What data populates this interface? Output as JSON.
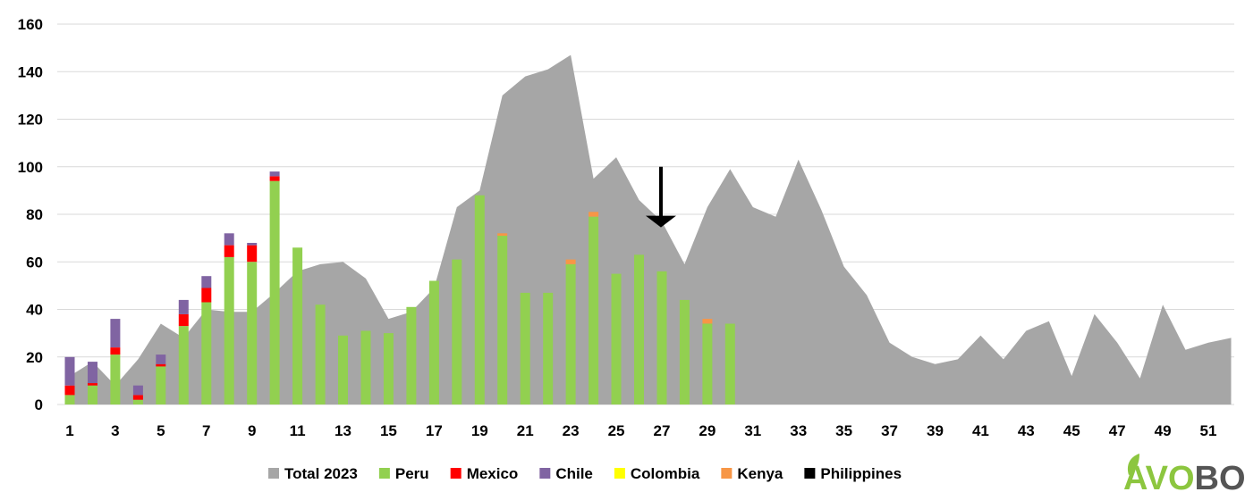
{
  "chart_data": {
    "type": "bar",
    "title": "",
    "xlabel": "",
    "ylabel": "",
    "ylim": [
      0,
      160
    ],
    "xlim": [
      1,
      52
    ],
    "y_ticks": [
      0,
      20,
      40,
      60,
      80,
      100,
      120,
      140,
      160
    ],
    "x_ticks": [
      1,
      3,
      5,
      7,
      9,
      11,
      13,
      15,
      17,
      19,
      21,
      23,
      25,
      27,
      29,
      31,
      33,
      35,
      37,
      39,
      41,
      43,
      45,
      47,
      49,
      51
    ],
    "grid": "horizontal",
    "legend_position": "bottom",
    "area_series": {
      "name": "Total 2023",
      "color": "#a6a6a6",
      "x": [
        1,
        2,
        3,
        4,
        5,
        6,
        7,
        8,
        9,
        10,
        11,
        12,
        13,
        14,
        15,
        16,
        17,
        18,
        19,
        20,
        21,
        22,
        23,
        24,
        25,
        26,
        27,
        28,
        29,
        30,
        31,
        32,
        33,
        34,
        35,
        36,
        37,
        38,
        39,
        40,
        41,
        42,
        43,
        44,
        45,
        46,
        47,
        48,
        49,
        50,
        51,
        52
      ],
      "values": [
        12,
        18,
        8,
        19,
        34,
        28,
        40,
        39,
        39,
        47,
        56,
        59,
        60,
        53,
        36,
        39,
        49,
        83,
        90,
        130,
        138,
        141,
        147,
        95,
        104,
        86,
        77,
        59,
        83,
        99,
        83,
        79,
        103,
        82,
        58,
        46,
        26,
        20,
        17,
        19,
        29,
        19,
        31,
        35,
        12,
        38,
        26,
        11,
        42,
        23,
        26,
        28
      ]
    },
    "bar_x": [
      1,
      2,
      3,
      4,
      5,
      6,
      7,
      8,
      9,
      10,
      11,
      12,
      13,
      14,
      15,
      16,
      17,
      18,
      19,
      20,
      21,
      22,
      23,
      24,
      25,
      26,
      27,
      28,
      29,
      30
    ],
    "series": [
      {
        "name": "Peru",
        "color": "#92d050",
        "values": [
          4,
          8,
          21,
          2,
          16,
          33,
          43,
          62,
          60,
          94,
          66,
          42,
          29,
          31,
          30,
          41,
          52,
          61,
          88,
          71,
          47,
          47,
          59,
          79,
          55,
          63,
          56,
          44,
          34,
          34
        ]
      },
      {
        "name": "Mexico",
        "color": "#ff0000",
        "values": [
          4,
          1,
          3,
          2,
          1,
          5,
          6,
          5,
          7,
          2,
          0,
          0,
          0,
          0,
          0,
          0,
          0,
          0,
          0,
          0,
          0,
          0,
          0,
          0,
          0,
          0,
          0,
          0,
          0,
          0
        ]
      },
      {
        "name": "Chile",
        "color": "#8064a2",
        "values": [
          12,
          9,
          12,
          4,
          4,
          6,
          5,
          5,
          1,
          2,
          0,
          0,
          0,
          0,
          0,
          0,
          0,
          0,
          0,
          0,
          0,
          0,
          0,
          0,
          0,
          0,
          0,
          0,
          0,
          0
        ]
      },
      {
        "name": "Colombia",
        "color": "#ffff00",
        "values": [
          0,
          0,
          0,
          0,
          0,
          0,
          0,
          0,
          0,
          0,
          0,
          0,
          0,
          0,
          0,
          0,
          0,
          0,
          0,
          0,
          0,
          0,
          0,
          0,
          0,
          0,
          0,
          0,
          0,
          0
        ]
      },
      {
        "name": "Kenya",
        "color": "#f79646",
        "values": [
          0,
          0,
          0,
          0,
          0,
          0,
          0,
          0,
          0,
          0,
          0,
          0,
          0,
          0,
          0,
          0,
          0,
          0,
          0,
          1,
          0,
          0,
          2,
          2,
          0,
          0,
          0,
          0,
          2,
          0
        ]
      },
      {
        "name": "Philippines",
        "color": "#000000",
        "values": [
          0,
          0,
          0,
          0,
          0,
          0,
          0,
          0,
          0,
          0,
          0,
          0,
          0,
          0,
          0,
          0,
          0,
          0,
          0,
          0,
          0,
          0,
          0,
          0,
          0,
          0,
          0,
          0,
          0,
          0
        ]
      }
    ],
    "annotation": {
      "type": "down-arrow",
      "x": 27,
      "y_from": 100,
      "y_to": 76
    }
  },
  "logo": {
    "part1": "AVO",
    "part2": "BOOK",
    "leaf_icon": "leaf-icon",
    "color1": "#8cc63f",
    "color2": "#555555"
  }
}
